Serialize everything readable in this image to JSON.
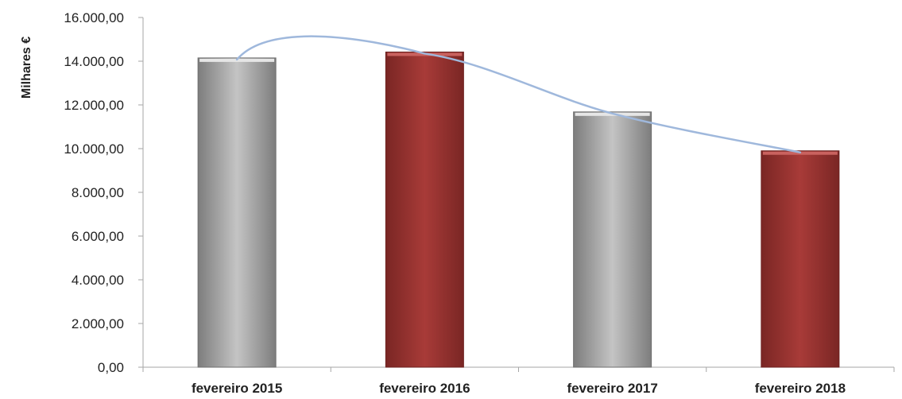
{
  "chart_data": {
    "type": "bar",
    "ylabel": "Milhares €",
    "xlabel": "",
    "title": "",
    "categories": [
      "fevereiro  2015",
      "fevereiro  2016",
      "fevereiro  2017",
      "fevereiro  2018"
    ],
    "values": [
      14150,
      14420,
      11680,
      9900
    ],
    "bar_colors": [
      "#a9a9a9",
      "#9b3432",
      "#a9a9a9",
      "#9b3432"
    ],
    "trendline": {
      "type": "smoothed",
      "color": "#9fb8dc",
      "values": [
        14150,
        14420,
        11680,
        9900
      ]
    },
    "ylim": [
      0,
      16000
    ],
    "yticks": [
      0,
      2000,
      4000,
      6000,
      8000,
      10000,
      12000,
      14000,
      16000
    ],
    "ytick_labels": [
      "0,00",
      "2.000,00",
      "4.000,00",
      "6.000,00",
      "8.000,00",
      "10.000,00",
      "12.000,00",
      "14.000,00",
      "16.000,00"
    ],
    "grid": false,
    "legend": "none"
  }
}
